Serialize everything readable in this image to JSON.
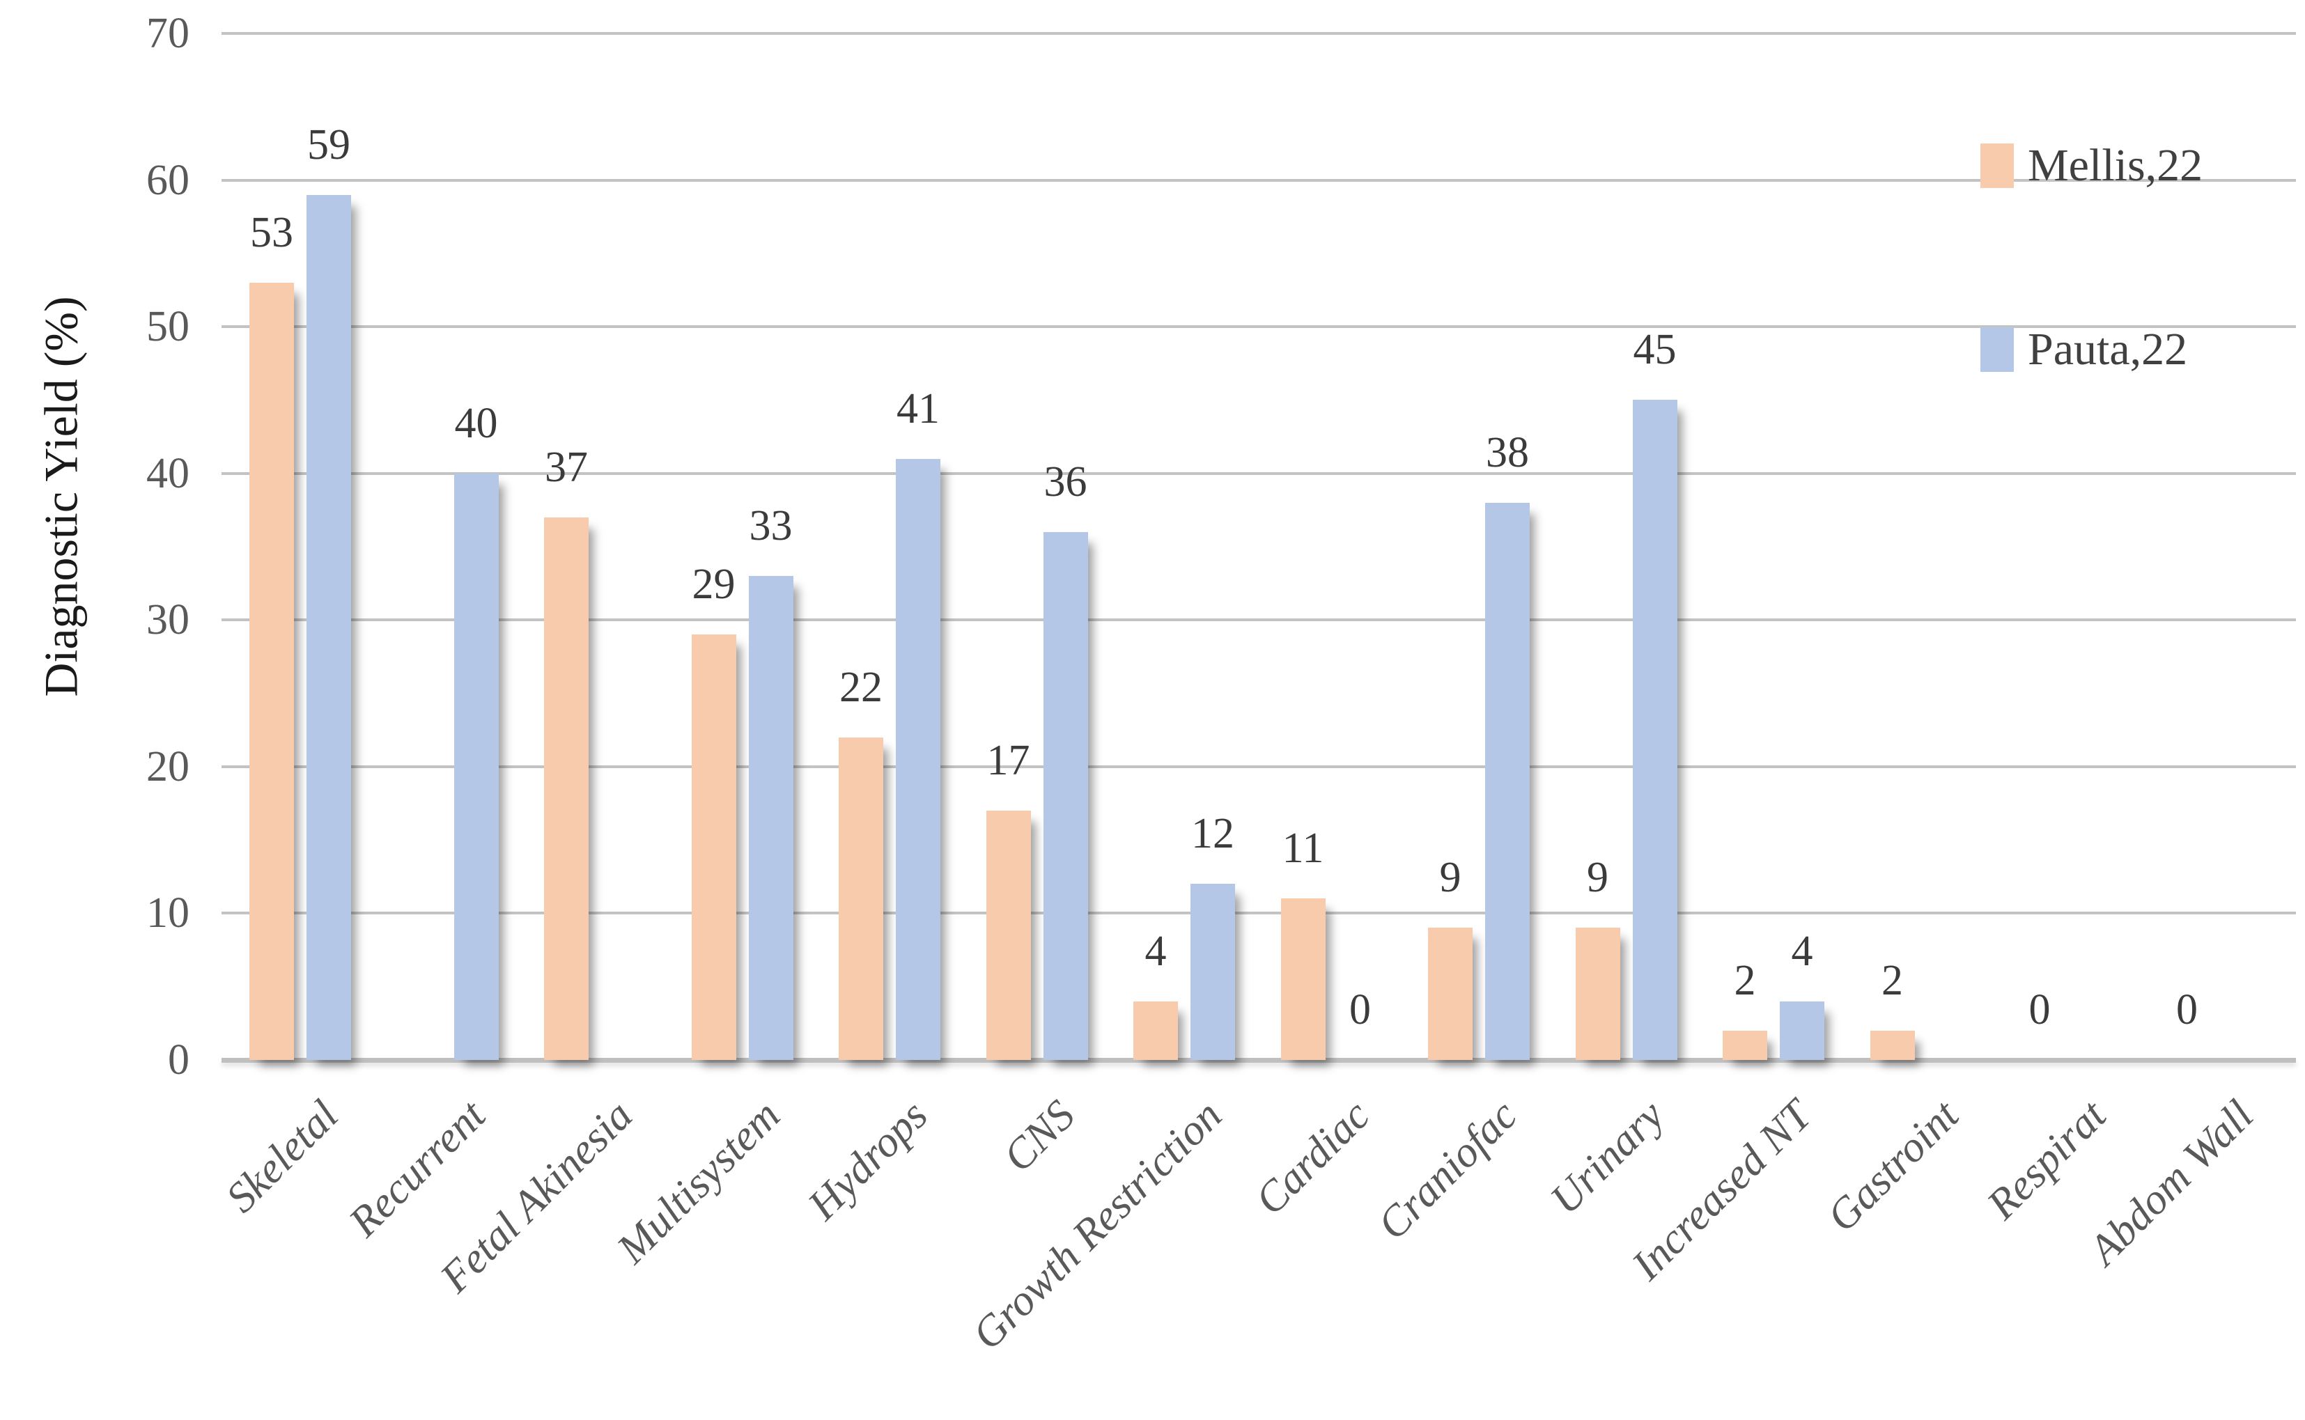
{
  "chart_data": {
    "type": "bar",
    "title": "",
    "xlabel": "",
    "ylabel": "Diagnostic Yield (%)",
    "ylim": [
      0,
      70
    ],
    "y_ticks": [
      0,
      10,
      20,
      30,
      40,
      50,
      60,
      70
    ],
    "grid": true,
    "legend_position": "top-right",
    "categories": [
      "Skeletal",
      "Recurrent",
      "Fetal Akinesia",
      "Multisystem",
      "Hydrops",
      "CNS",
      "Growth Restriction",
      "Cardiac",
      "Craniofac",
      "Urinary",
      "Increased NT",
      "Gastroint",
      "Respirat",
      "Abdom Wall"
    ],
    "series": [
      {
        "name": "Mellis,22",
        "color": "#F8CBAD",
        "values": [
          53,
          null,
          37,
          29,
          22,
          17,
          4,
          11,
          9,
          9,
          2,
          2,
          0,
          0
        ]
      },
      {
        "name": "Pauta,22",
        "color": "#B4C7E7",
        "values": [
          59,
          40,
          null,
          33,
          41,
          36,
          12,
          0,
          38,
          45,
          4,
          null,
          null,
          null
        ]
      }
    ],
    "style": {
      "background": "#FFFFFF",
      "data_label_color": "#3B3B3B",
      "tick_label_color": "#595959",
      "x_label_color": "#595959",
      "axis_title_color": "#1A1A1A",
      "legend_text_color": "#404040",
      "gridline_color": "#C3C3C3",
      "baseline_color": "#BFBFBF"
    }
  }
}
